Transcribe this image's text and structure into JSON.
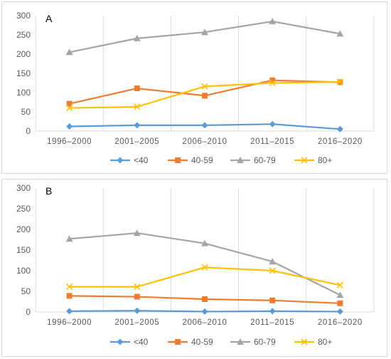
{
  "chart_data": [
    {
      "type": "line",
      "panel_label": "A",
      "categories": [
        "1996–2000",
        "2001–2005",
        "2006–2010",
        "2011–2015",
        "2016–2020"
      ],
      "ylim": [
        0,
        300
      ],
      "yticks": [
        0,
        50,
        100,
        150,
        200,
        250,
        300
      ],
      "grid": "vertical",
      "legend": "bottom",
      "series": [
        {
          "name": "<40",
          "color": "#5b9bd5",
          "marker": "diamond",
          "values": [
            12,
            15,
            15,
            18,
            5
          ]
        },
        {
          "name": "40-59",
          "color": "#ed7d31",
          "marker": "square",
          "values": [
            71,
            111,
            92,
            132,
            127
          ]
        },
        {
          "name": "60-79",
          "color": "#a5a5a5",
          "marker": "triangle",
          "values": [
            205,
            241,
            257,
            285,
            253
          ]
        },
        {
          "name": "80+",
          "color": "#ffc000",
          "marker": "cross",
          "values": [
            60,
            63,
            116,
            125,
            128
          ]
        }
      ]
    },
    {
      "type": "line",
      "panel_label": "B",
      "categories": [
        "1996–2000",
        "2001–2005",
        "2006–2010",
        "2011–2015",
        "2016–2020"
      ],
      "ylim": [
        0,
        300
      ],
      "yticks": [
        0,
        50,
        100,
        150,
        200,
        250,
        300
      ],
      "grid": "vertical",
      "legend": "bottom",
      "series": [
        {
          "name": "<40",
          "color": "#5b9bd5",
          "marker": "diamond",
          "values": [
            2,
            3,
            1,
            2,
            1
          ]
        },
        {
          "name": "40-59",
          "color": "#ed7d31",
          "marker": "square",
          "values": [
            39,
            37,
            31,
            28,
            21
          ]
        },
        {
          "name": "60-79",
          "color": "#a5a5a5",
          "marker": "triangle",
          "values": [
            177,
            191,
            166,
            122,
            41
          ]
        },
        {
          "name": "80+",
          "color": "#ffc000",
          "marker": "cross",
          "values": [
            61,
            61,
            108,
            100,
            65
          ]
        }
      ]
    }
  ]
}
